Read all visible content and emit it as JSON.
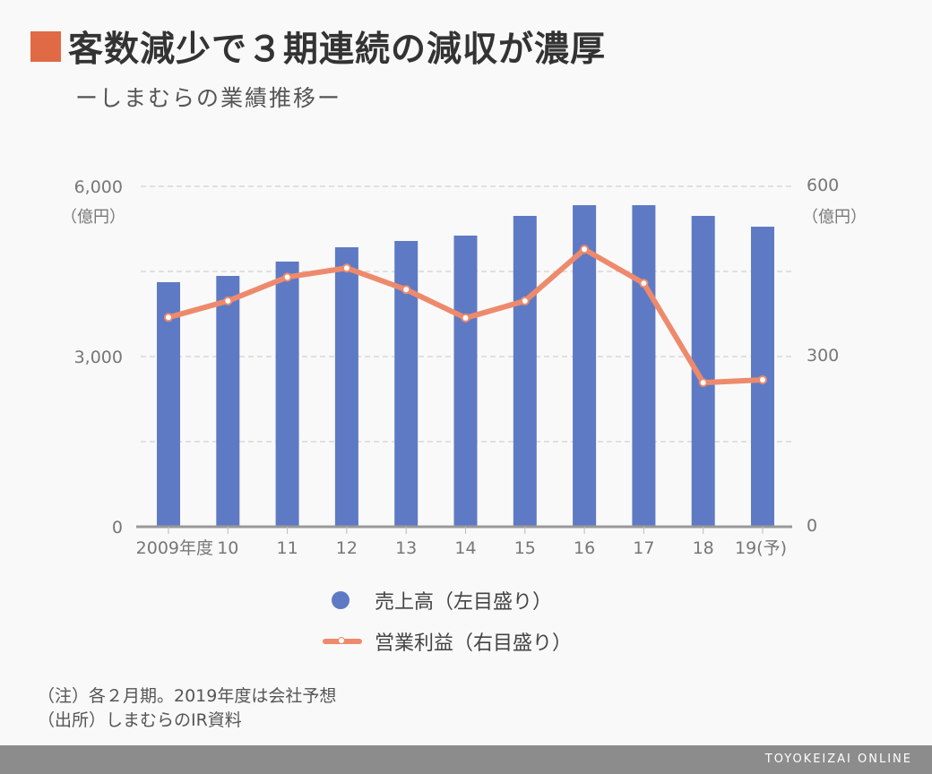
{
  "title": "客数減少で３期連続の減収が濃厚",
  "subtitle": "ーしまむらの業績推移ー",
  "colors": {
    "accent": "#e06a45",
    "bar": "#5f7ac4",
    "line": "#ee8a6c"
  },
  "chart_data": {
    "type": "bar+line",
    "categories": [
      "2009年度",
      "10",
      "11",
      "12",
      "13",
      "14",
      "15",
      "16",
      "17",
      "18",
      "19(予)"
    ],
    "series": [
      {
        "name": "売上高（左目盛り）",
        "type": "bar",
        "axis": "left",
        "values": [
          4311,
          4421,
          4674,
          4926,
          5037,
          5132,
          5479,
          5668,
          5668,
          5479,
          5289
        ]
      },
      {
        "name": "営業利益（右目盛り）",
        "type": "line",
        "axis": "right",
        "values": [
          369,
          398,
          440,
          456,
          418,
          368,
          398,
          489,
          429,
          254,
          259
        ]
      }
    ],
    "left_axis": {
      "ylim": [
        0,
        6000
      ],
      "ticks": [
        "0",
        "3,000",
        "6,000"
      ],
      "unit": "（億円）"
    },
    "right_axis": {
      "ylim": [
        0,
        600
      ],
      "ticks": [
        "0",
        "300",
        "600"
      ],
      "unit": "（億円）"
    },
    "grid": true
  },
  "notes": [
    "（注）各２月期。2019年度は会社予想",
    "（出所）しまむらのIR資料"
  ],
  "footer": "TOYOKEIZAI ONLINE"
}
